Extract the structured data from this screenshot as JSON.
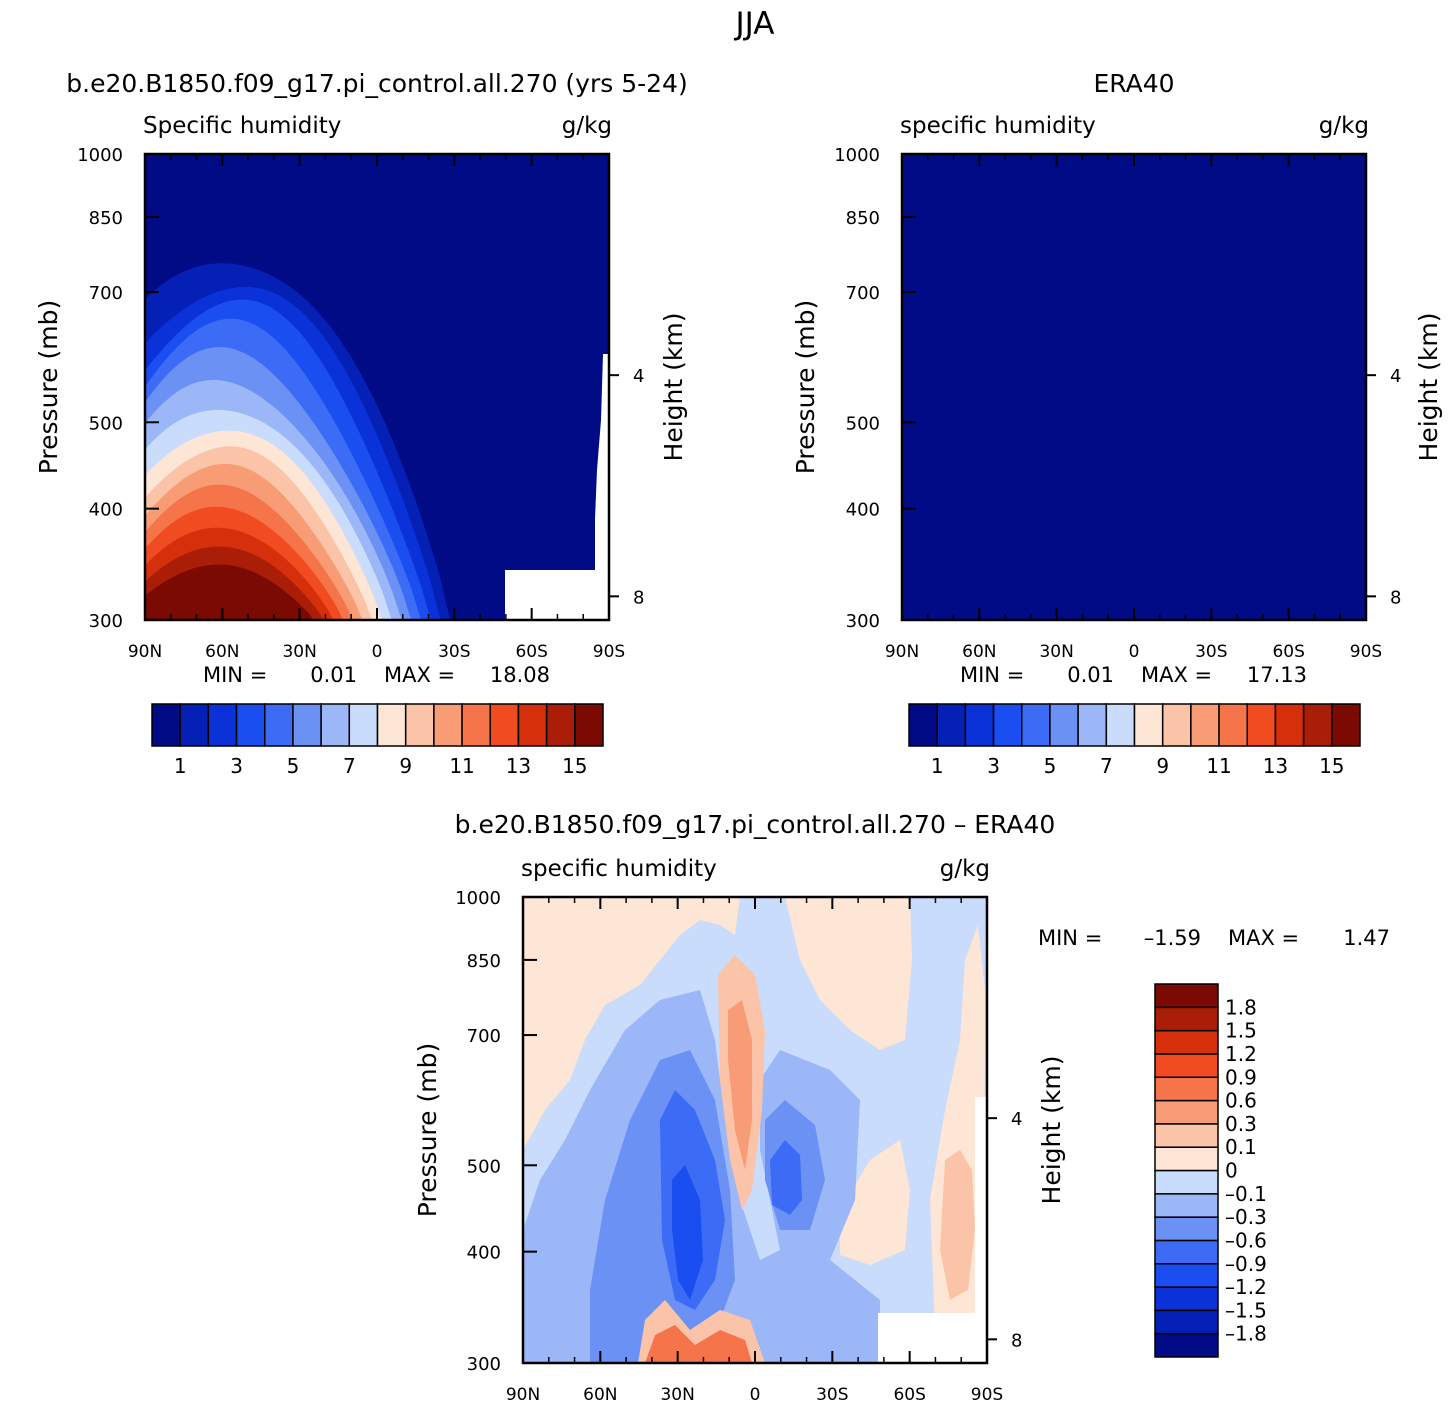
{
  "figure": {
    "title": "JJA"
  },
  "chart_data": [
    {
      "type": "heatmap",
      "panel": "model",
      "title": "b.e20.B1850.f09_g17.pi_control.all.270 (yrs 5-24)",
      "variable": "Specific humidity",
      "units": "g/kg",
      "ylabel": "Pressure (mb)",
      "y2label": "Height (km)",
      "x_ticks": [
        "90N",
        "60N",
        "30N",
        "0",
        "30S",
        "60S",
        "90S"
      ],
      "x_range": [
        90,
        -90
      ],
      "y_ticks": [
        "300",
        "400",
        "500",
        "700",
        "850",
        "1000"
      ],
      "y_range": [
        1000,
        300
      ],
      "y2_ticks": [
        "8",
        "4"
      ],
      "min_label": "MIN =",
      "min_value": "0.01",
      "max_label": "MAX =",
      "max_value": "18.08",
      "levels": [
        1,
        2,
        3,
        4,
        5,
        6,
        7,
        8,
        9,
        10,
        11,
        12,
        13,
        14,
        15
      ],
      "colorbar_labels": [
        "1",
        "3",
        "5",
        "7",
        "9",
        "11",
        "13",
        "15"
      ],
      "colors": [
        "#020b86",
        "#0520b5",
        "#0a32d8",
        "#1b4ef0",
        "#3c6cf5",
        "#6b91f5",
        "#9bb7f8",
        "#c9dcfb",
        "#fde6d6",
        "#fbc4a8",
        "#f89c76",
        "#f6744a",
        "#f14b22",
        "#d62f0c",
        "#aa1d06",
        "#7a0a02"
      ],
      "peak_value": 18.08,
      "missing_topography": true
    },
    {
      "type": "heatmap",
      "panel": "observation",
      "title": "ERA40",
      "variable": "specific humidity",
      "units": "g/kg",
      "ylabel": "Pressure (mb)",
      "y2label": "Height (km)",
      "x_ticks": [
        "90N",
        "60N",
        "30N",
        "0",
        "30S",
        "60S",
        "90S"
      ],
      "x_range": [
        90,
        -90
      ],
      "y_ticks": [
        "300",
        "400",
        "500",
        "700",
        "850",
        "1000"
      ],
      "y_range": [
        1000,
        300
      ],
      "y2_ticks": [
        "8",
        "4"
      ],
      "min_label": "MIN =",
      "min_value": "0.01",
      "max_label": "MAX =",
      "max_value": "17.13",
      "levels": [
        1,
        2,
        3,
        4,
        5,
        6,
        7,
        8,
        9,
        10,
        11,
        12,
        13,
        14,
        15
      ],
      "colorbar_labels": [
        "1",
        "3",
        "5",
        "7",
        "9",
        "11",
        "13",
        "15"
      ],
      "colors": [
        "#020b86",
        "#0520b5",
        "#0a32d8",
        "#1b4ef0",
        "#3c6cf5",
        "#6b91f5",
        "#9bb7f8",
        "#c9dcfb",
        "#fde6d6",
        "#fbc4a8",
        "#f89c76",
        "#f6744a",
        "#f14b22",
        "#d62f0c",
        "#aa1d06",
        "#7a0a02"
      ],
      "peak_value": 17.13,
      "missing_topography": false
    },
    {
      "type": "heatmap",
      "panel": "difference",
      "title": "b.e20.B1850.f09_g17.pi_control.all.270 – ERA40",
      "variable": "specific humidity",
      "units": "g/kg",
      "ylabel": "Pressure (mb)",
      "y2label": "Height (km)",
      "x_ticks": [
        "90N",
        "60N",
        "30N",
        "0",
        "30S",
        "60S",
        "90S"
      ],
      "x_range": [
        90,
        -90
      ],
      "y_ticks": [
        "300",
        "400",
        "500",
        "700",
        "850",
        "1000"
      ],
      "y_range": [
        1000,
        300
      ],
      "y2_ticks": [
        "8",
        "4"
      ],
      "min_label": "MIN =",
      "min_value": "–1.59",
      "max_label": "MAX =",
      "max_value": "1.47",
      "levels": [
        -1.8,
        -1.5,
        -1.2,
        -0.9,
        -0.6,
        -0.3,
        -0.1,
        0,
        0.1,
        0.3,
        0.6,
        0.9,
        1.2,
        1.5,
        1.8
      ],
      "colorbar_labels": [
        "1.8",
        "1.5",
        "1.2",
        "0.9",
        "0.6",
        "0.3",
        "0.1",
        "0",
        "–0.1",
        "–0.3",
        "–0.6",
        "–0.9",
        "–1.2",
        "–1.5",
        "–1.8"
      ],
      "colors": [
        "#020b86",
        "#0520b5",
        "#0a32d8",
        "#1b4ef0",
        "#3c6cf5",
        "#6b91f5",
        "#9bb7f8",
        "#c9dcfb",
        "#fde6d6",
        "#fbc4a8",
        "#f89c76",
        "#f6744a",
        "#f14b22",
        "#d62f0c",
        "#aa1d06",
        "#7a0a02"
      ],
      "missing_topography": true
    }
  ]
}
